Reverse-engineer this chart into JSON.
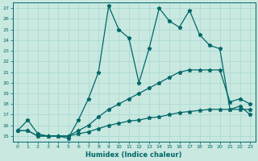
{
  "xlabel": "Humidex (Indice chaleur)",
  "bg_color": "#c8e8e0",
  "line_color": "#006868",
  "grid_color": "#a8d8d0",
  "x_values": [
    0,
    1,
    2,
    3,
    4,
    5,
    6,
    7,
    8,
    9,
    10,
    11,
    12,
    13,
    14,
    15,
    16,
    17,
    18,
    19,
    20,
    21,
    22,
    23
  ],
  "line1": [
    15.5,
    16.5,
    15.2,
    15.0,
    15.0,
    14.8,
    16.5,
    18.5,
    21.0,
    27.2,
    25.0,
    24.2,
    20.0,
    23.2,
    27.0,
    25.8,
    25.2,
    26.8,
    24.5,
    23.5,
    23.2,
    17.5,
    17.8,
    17.0
  ],
  "line2": [
    15.5,
    15.5,
    15.0,
    15.0,
    15.0,
    15.0,
    15.5,
    16.0,
    16.8,
    17.5,
    18.0,
    18.5,
    19.0,
    19.5,
    20.0,
    20.5,
    21.0,
    21.2,
    21.2,
    21.2,
    21.2,
    18.2,
    18.5,
    18.0
  ],
  "line3": [
    15.5,
    15.5,
    15.0,
    15.0,
    15.0,
    15.0,
    15.2,
    15.4,
    15.7,
    16.0,
    16.2,
    16.4,
    16.5,
    16.7,
    16.8,
    17.0,
    17.2,
    17.3,
    17.4,
    17.5,
    17.5,
    17.5,
    17.5,
    17.5
  ],
  "ylim": [
    14.5,
    27.5
  ],
  "xlim": [
    -0.5,
    23.5
  ],
  "yticks": [
    15,
    16,
    17,
    18,
    19,
    20,
    21,
    22,
    23,
    24,
    25,
    26,
    27
  ],
  "xticks": [
    0,
    1,
    2,
    3,
    4,
    5,
    6,
    7,
    8,
    9,
    10,
    11,
    12,
    13,
    14,
    15,
    16,
    17,
    18,
    19,
    20,
    21,
    22,
    23
  ]
}
